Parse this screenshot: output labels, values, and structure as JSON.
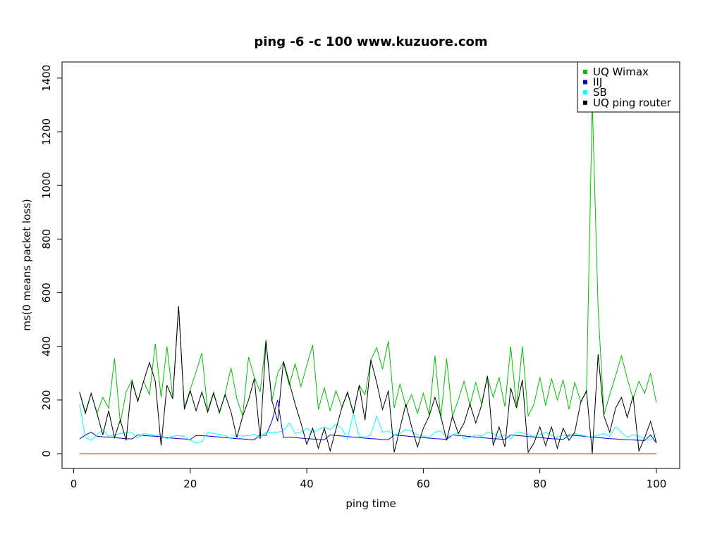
{
  "chart_data": {
    "type": "line",
    "title": "ping -6 -c 100 www.kuzuore.com",
    "xlabel": "ping time",
    "ylabel": "ms(0 means packet loss)",
    "xlim": [
      -2,
      104
    ],
    "ylim": [
      -55,
      1460
    ],
    "xticks": [
      0,
      20,
      40,
      60,
      80,
      100
    ],
    "yticks": [
      0,
      200,
      400,
      600,
      800,
      1000,
      1200,
      1400
    ],
    "legend_position": "top-right",
    "grid": false,
    "x": [
      1,
      2,
      3,
      4,
      5,
      6,
      7,
      8,
      9,
      10,
      11,
      12,
      13,
      14,
      15,
      16,
      17,
      18,
      19,
      20,
      21,
      22,
      23,
      24,
      25,
      26,
      27,
      28,
      29,
      30,
      31,
      32,
      33,
      34,
      35,
      36,
      37,
      38,
      39,
      40,
      41,
      42,
      43,
      44,
      45,
      46,
      47,
      48,
      49,
      50,
      51,
      52,
      53,
      54,
      55,
      56,
      57,
      58,
      59,
      60,
      61,
      62,
      63,
      64,
      65,
      66,
      67,
      68,
      69,
      70,
      71,
      72,
      73,
      74,
      75,
      76,
      77,
      78,
      79,
      80,
      81,
      82,
      83,
      84,
      85,
      86,
      87,
      88,
      89,
      90,
      91,
      92,
      93,
      94,
      95,
      96,
      97,
      98,
      99,
      100
    ],
    "series": [
      {
        "name": "UQ Wimax",
        "color": "#00c000",
        "values": [
          230,
          155,
          225,
          150,
          210,
          170,
          355,
          115,
          230,
          275,
          195,
          270,
          220,
          410,
          210,
          400,
          210,
          550,
          170,
          240,
          305,
          375,
          160,
          230,
          150,
          225,
          320,
          205,
          140,
          360,
          285,
          230,
          425,
          195,
          300,
          340,
          255,
          335,
          250,
          330,
          405,
          165,
          245,
          160,
          235,
          175,
          225,
          155,
          255,
          220,
          350,
          395,
          315,
          420,
          170,
          260,
          175,
          220,
          150,
          225,
          145,
          365,
          130,
          355,
          140,
          200,
          270,
          180,
          265,
          185,
          285,
          210,
          285,
          175,
          400,
          175,
          400,
          140,
          185,
          285,
          180,
          280,
          200,
          275,
          165,
          265,
          195,
          230,
          1310,
          540,
          145,
          220,
          290,
          365,
          280,
          205,
          270,
          225,
          300,
          190
        ]
      },
      {
        "name": "IIJ",
        "color": "#0000cc",
        "values": [
          55,
          70,
          80,
          65,
          63,
          62,
          60,
          58,
          56,
          55,
          70,
          68,
          66,
          65,
          63,
          60,
          58,
          56,
          55,
          53,
          68,
          67,
          66,
          64,
          62,
          60,
          58,
          56,
          55,
          53,
          52,
          70,
          68,
          120,
          200,
          60,
          62,
          60,
          58,
          56,
          55,
          53,
          52,
          70,
          68,
          66,
          64,
          62,
          60,
          58,
          56,
          55,
          53,
          52,
          70,
          68,
          66,
          64,
          62,
          60,
          58,
          56,
          55,
          53,
          70,
          68,
          66,
          64,
          62,
          60,
          58,
          56,
          55,
          53,
          70,
          68,
          66,
          64,
          62,
          60,
          58,
          56,
          55,
          53,
          70,
          68,
          66,
          64,
          62,
          60,
          58,
          56,
          55,
          53,
          52,
          51,
          50,
          49,
          70,
          40
        ]
      },
      {
        "name": "SB",
        "color": "#00ffff",
        "values": [
          185,
          60,
          50,
          70,
          90,
          65,
          70,
          75,
          80,
          78,
          60,
          75,
          72,
          68,
          70,
          55,
          65,
          68,
          64,
          50,
          40,
          45,
          80,
          75,
          72,
          68,
          55,
          70,
          65,
          68,
          72,
          60,
          80,
          78,
          80,
          85,
          115,
          75,
          80,
          95,
          78,
          90,
          100,
          90,
          110,
          95,
          55,
          150,
          65,
          60,
          70,
          140,
          80,
          85,
          70,
          75,
          90,
          85,
          70,
          65,
          60,
          80,
          85,
          60,
          70,
          80,
          55,
          60,
          70,
          65,
          80,
          75,
          60,
          70,
          55,
          80,
          78,
          70,
          65,
          72,
          80,
          68,
          60,
          70,
          65,
          75,
          70,
          65,
          60,
          70,
          75,
          65,
          100,
          80,
          60,
          70,
          65,
          55,
          50,
          75
        ]
      },
      {
        "name": "UQ ping router",
        "color": "#000000",
        "values": [
          230,
          150,
          225,
          150,
          70,
          160,
          60,
          125,
          50,
          270,
          195,
          270,
          340,
          270,
          30,
          255,
          205,
          550,
          165,
          235,
          160,
          230,
          155,
          225,
          155,
          220,
          155,
          60,
          140,
          200,
          280,
          55,
          420,
          200,
          120,
          345,
          265,
          185,
          115,
          35,
          95,
          20,
          95,
          10,
          90,
          170,
          230,
          150,
          255,
          125,
          350,
          265,
          165,
          235,
          5,
          95,
          185,
          100,
          25,
          95,
          140,
          210,
          140,
          50,
          140,
          75,
          115,
          185,
          115,
          180,
          290,
          30,
          100,
          25,
          245,
          170,
          275,
          5,
          40,
          100,
          30,
          100,
          20,
          95,
          50,
          80,
          190,
          235,
          0,
          370,
          140,
          80,
          170,
          210,
          135,
          215,
          10,
          60,
          120,
          40
        ]
      },
      {
        "name": "",
        "color": "#ff0000",
        "values": [
          0,
          0,
          0,
          0,
          0,
          0,
          0,
          0,
          0,
          0,
          0,
          0,
          0,
          0,
          0,
          0,
          0,
          0,
          0,
          0,
          0,
          0,
          0,
          0,
          0,
          0,
          0,
          0,
          0,
          0,
          0,
          0,
          0,
          0,
          0,
          0,
          0,
          0,
          0,
          0,
          0,
          0,
          0,
          0,
          0,
          0,
          0,
          0,
          0,
          0,
          0,
          0,
          0,
          0,
          0,
          0,
          0,
          0,
          0,
          0,
          0,
          0,
          0,
          0,
          0,
          0,
          0,
          0,
          0,
          0,
          0,
          0,
          0,
          0,
          0,
          0,
          0,
          0,
          0,
          0,
          0,
          0,
          0,
          0,
          0,
          0,
          0,
          0,
          0,
          0,
          0,
          0,
          0,
          0,
          0,
          0,
          0,
          0,
          0,
          0
        ]
      }
    ]
  }
}
